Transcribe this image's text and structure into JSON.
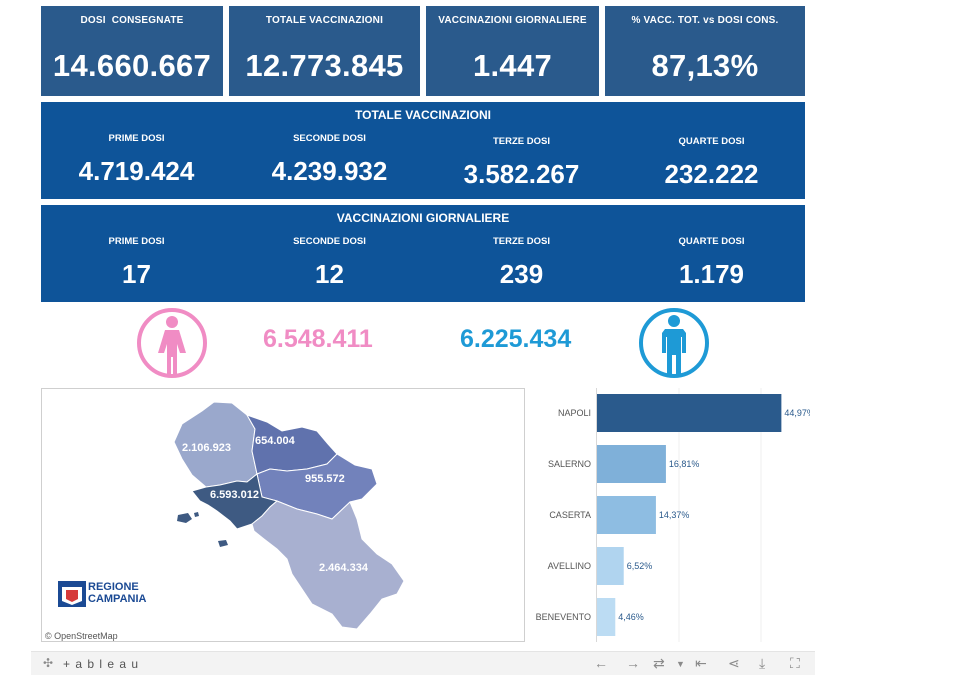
{
  "kpis": [
    {
      "label": "DOSI  CONSEGNATE",
      "value": "14.660.667"
    },
    {
      "label": "TOTALE VACCINAZIONI",
      "value": "12.773.845"
    },
    {
      "label": "VACCINAZIONI GIORNALIERE",
      "value": "1.447"
    },
    {
      "label": "% VACC. TOT. vs DOSI CONS.",
      "value": "87,13%"
    }
  ],
  "totale": {
    "title": "TOTALE VACCINAZIONI",
    "items": [
      {
        "label": "PRIME DOSI",
        "value": "4.719.424"
      },
      {
        "label": "SECONDE DOSI",
        "value": "4.239.932"
      },
      {
        "label": "TERZE DOSI",
        "value": "3.582.267"
      },
      {
        "label": "QUARTE DOSI",
        "value": "232.222"
      }
    ]
  },
  "giornaliere": {
    "title": "VACCINAZIONI GIORNALIERE",
    "items": [
      {
        "label": "PRIME DOSI",
        "value": "17"
      },
      {
        "label": "SECONDE DOSI",
        "value": "12"
      },
      {
        "label": "TERZE DOSI",
        "value": "239"
      },
      {
        "label": "QUARTE DOSI",
        "value": "1.179"
      }
    ]
  },
  "gender": {
    "female_value": "6.548.411",
    "male_value": "6.225.434",
    "female_color": "#f08cc4",
    "male_color": "#1e9ad6",
    "female_icon": "female-icon",
    "male_icon": "male-icon"
  },
  "map": {
    "labels": {
      "caserta": "2.106.923",
      "benevento": "654.004",
      "avellino": "955.572",
      "napoli": "6.593.012",
      "salerno": "2.464.334"
    },
    "logo_line1": "REGIONE",
    "logo_line2": "CAMPANIA",
    "attribution": "© OpenStreetMap"
  },
  "chart_data": {
    "type": "bar",
    "orientation": "horizontal",
    "categories": [
      "NAPOLI",
      "SALERNO",
      "CASERTA",
      "AVELLINO",
      "BENEVENTO"
    ],
    "values": [
      44.97,
      16.81,
      14.37,
      6.52,
      4.46
    ],
    "value_labels": [
      "44,97%",
      "16,81%",
      "14,37%",
      "6,52%",
      "4,46%"
    ],
    "colors": [
      "#2a5a8c",
      "#7fb0d9",
      "#8ebde2",
      "#b0d4ef",
      "#bcdcf3"
    ],
    "xlim": [
      0,
      50
    ]
  },
  "toolbar": {
    "brand": "+ a b l e a u"
  }
}
